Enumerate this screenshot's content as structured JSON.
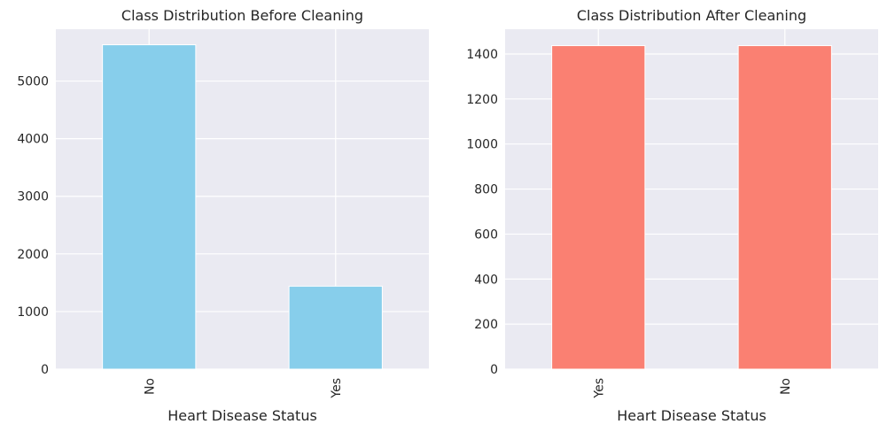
{
  "chart_data": [
    {
      "type": "bar",
      "title": "Class Distribution Before Cleaning",
      "xlabel": "Heart Disease Status",
      "ylabel": "",
      "categories": [
        "No",
        "Yes"
      ],
      "values": [
        5630,
        1440
      ],
      "ylim": [
        0,
        5900
      ],
      "yticks": [
        0,
        1000,
        2000,
        3000,
        4000,
        5000
      ],
      "bar_color": "#87ceeb",
      "grid": true,
      "legend": "none"
    },
    {
      "type": "bar",
      "title": "Class Distribution After Cleaning",
      "xlabel": "Heart Disease Status",
      "ylabel": "",
      "categories": [
        "Yes",
        "No"
      ],
      "values": [
        1437,
        1437
      ],
      "ylim": [
        0,
        1510
      ],
      "yticks": [
        0,
        200,
        400,
        600,
        800,
        1000,
        1200,
        1400
      ],
      "bar_color": "#fa8072",
      "grid": true,
      "legend": "none"
    }
  ]
}
